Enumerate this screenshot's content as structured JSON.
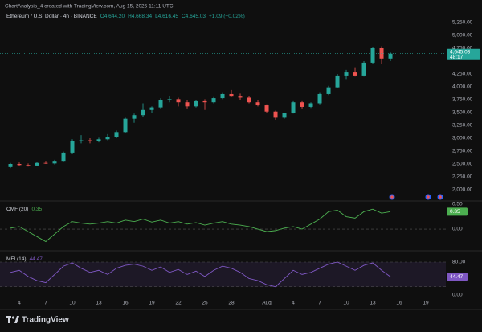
{
  "header": {
    "text": "ChartAnalysis_4 created with TradingView.com, Aug 15, 2025 11:11 UTC"
  },
  "footer": {
    "brand": "TradingView"
  },
  "chart_data": [
    {
      "type": "candlestick",
      "legend": {
        "symbol": "Ethereum / U.S. Dollar · 4h · BINANCE",
        "ohlc": [
          "O4,644.20",
          "H4,668.34",
          "L4,616.45",
          "C4,645.03"
        ],
        "change": "+1.09 (+0.02%)"
      },
      "last_label": "4,645.03",
      "countdown": "48:17",
      "up_color": "#26a69a",
      "down_color": "#ef5350",
      "xlim": [
        0.818,
        51.27
      ],
      "ylim": [
        1812.5,
        5312.5
      ],
      "grid": false,
      "yticks": [
        {
          "value": 5250,
          "label": "5,250.00"
        },
        {
          "value": 5000,
          "label": "5,000.00"
        },
        {
          "value": 4750,
          "label": "4,750.00"
        },
        {
          "value": 4250,
          "label": "4,250.00"
        },
        {
          "value": 4000,
          "label": "4,000.00"
        },
        {
          "value": 3750,
          "label": "3,750.00"
        },
        {
          "value": 3500,
          "label": "3,500.00"
        },
        {
          "value": 3250,
          "label": "3,250.00"
        },
        {
          "value": 3000,
          "label": "3,000.00"
        },
        {
          "value": 2750,
          "label": "2,750.00"
        },
        {
          "value": 2500,
          "label": "2,500.00"
        },
        {
          "value": 2250,
          "label": "2,250.00"
        },
        {
          "value": 2000,
          "label": "2,000.00"
        }
      ],
      "x": [
        2,
        3,
        4,
        5,
        6,
        7,
        8,
        9,
        10,
        11,
        12,
        13,
        14,
        15,
        16,
        17,
        18,
        19,
        20,
        21,
        22,
        23,
        24,
        25,
        26,
        27,
        28,
        29,
        30,
        31,
        32,
        33,
        34,
        35,
        36,
        37,
        38,
        39,
        40,
        41,
        42,
        43,
        44,
        45
      ],
      "open": [
        2440,
        2500,
        2480,
        2470,
        2520,
        2510,
        2560,
        2720,
        2950,
        2960,
        2940,
        2980,
        3020,
        3120,
        3380,
        3450,
        3550,
        3600,
        3750,
        3760,
        3700,
        3620,
        3720,
        3700,
        3780,
        3860,
        3810,
        3790,
        3700,
        3640,
        3520,
        3400,
        3490,
        3700,
        3610,
        3680,
        3860,
        3990,
        4220,
        4280,
        4220,
        4470,
        4750,
        4550
      ],
      "high": [
        2520,
        2530,
        2510,
        2540,
        2560,
        2580,
        2740,
        2980,
        3060,
        3000,
        3010,
        3080,
        3150,
        3400,
        3480,
        3680,
        3620,
        3780,
        3820,
        3790,
        3750,
        3750,
        3760,
        3800,
        3880,
        3940,
        3870,
        3820,
        3740,
        3660,
        3540,
        3500,
        3720,
        3720,
        3700,
        3880,
        4020,
        4250,
        4330,
        4380,
        4500,
        4780,
        4790,
        4670
      ],
      "low": [
        2420,
        2460,
        2450,
        2460,
        2500,
        2490,
        2550,
        2700,
        2900,
        2900,
        2920,
        2960,
        3000,
        3100,
        3300,
        3420,
        3500,
        3580,
        3700,
        3620,
        3580,
        3600,
        3550,
        3680,
        3760,
        3800,
        3740,
        3680,
        3620,
        3500,
        3360,
        3380,
        3480,
        3580,
        3590,
        3660,
        3840,
        3980,
        4150,
        4200,
        4200,
        4450,
        4450,
        4500
      ],
      "close": [
        2500,
        2480,
        2470,
        2520,
        2510,
        2560,
        2720,
        2950,
        2960,
        2940,
        2980,
        3020,
        3120,
        3380,
        3450,
        3550,
        3600,
        3750,
        3760,
        3700,
        3620,
        3720,
        3700,
        3780,
        3860,
        3810,
        3790,
        3700,
        3640,
        3520,
        3400,
        3490,
        3700,
        3610,
        3680,
        3860,
        3990,
        4220,
        4280,
        4220,
        4470,
        4750,
        4550,
        4645.03
      ]
    },
    {
      "type": "line",
      "title": "CMF (20)",
      "last_label": "0.35",
      "color": "#4caf50",
      "xlim": [
        0.818,
        51.27
      ],
      "ylim": [
        -0.403,
        0.565
      ],
      "hlines": [
        0
      ],
      "yticks": [
        {
          "value": 0.5,
          "label": "0.50"
        },
        {
          "value": 0,
          "label": "0.00"
        }
      ],
      "x": [
        2,
        3,
        4,
        5,
        6,
        7,
        8,
        9,
        10,
        11,
        12,
        13,
        14,
        15,
        16,
        17,
        18,
        19,
        20,
        21,
        22,
        23,
        24,
        25,
        26,
        27,
        28,
        29,
        30,
        31,
        32,
        33,
        34,
        35,
        36,
        37,
        38,
        39,
        40,
        41,
        42,
        43,
        44,
        45
      ],
      "values": [
        0.02,
        0.05,
        -0.05,
        -0.15,
        -0.25,
        -0.1,
        0.05,
        0.15,
        0.12,
        0.1,
        0.12,
        0.15,
        0.12,
        0.18,
        0.15,
        0.2,
        0.14,
        0.18,
        0.12,
        0.15,
        0.1,
        0.13,
        0.08,
        0.12,
        0.15,
        0.1,
        0.08,
        0.05,
        0.0,
        -0.05,
        -0.03,
        0.02,
        0.05,
        0.0,
        0.1,
        0.2,
        0.35,
        0.38,
        0.25,
        0.22,
        0.35,
        0.4,
        0.32,
        0.35
      ]
    },
    {
      "type": "line",
      "title": "MFI (14)",
      "last_label": "44.47",
      "color": "#7e57c2",
      "xlim": [
        0.818,
        51.27
      ],
      "ylim": [
        -5.85,
        107.3
      ],
      "band": [
        20,
        80
      ],
      "yticks": [
        {
          "value": 80,
          "label": "80.00"
        },
        {
          "value": 0,
          "label": "0.00"
        }
      ],
      "x": [
        2,
        3,
        4,
        5,
        6,
        7,
        8,
        9,
        10,
        11,
        12,
        13,
        14,
        15,
        16,
        17,
        18,
        19,
        20,
        21,
        22,
        23,
        24,
        25,
        26,
        27,
        28,
        29,
        30,
        31,
        32,
        33,
        34,
        35,
        36,
        37,
        38,
        39,
        40,
        41,
        42,
        43,
        44,
        45
      ],
      "values": [
        55,
        60,
        45,
        35,
        30,
        50,
        70,
        78,
        65,
        55,
        60,
        50,
        65,
        72,
        75,
        70,
        60,
        68,
        55,
        62,
        50,
        58,
        45,
        60,
        70,
        65,
        55,
        40,
        35,
        25,
        20,
        40,
        60,
        50,
        55,
        65,
        75,
        80,
        70,
        60,
        72,
        78,
        60,
        44.47
      ],
      "xticks": [
        {
          "value": 3,
          "label": "4"
        },
        {
          "value": 6,
          "label": "7"
        },
        {
          "value": 9,
          "label": "10"
        },
        {
          "value": 12,
          "label": "13"
        },
        {
          "value": 15,
          "label": "16"
        },
        {
          "value": 18,
          "label": "19"
        },
        {
          "value": 21,
          "label": "22"
        },
        {
          "value": 24,
          "label": "25"
        },
        {
          "value": 27,
          "label": "28"
        },
        {
          "value": 31,
          "label": "Aug"
        },
        {
          "value": 34,
          "label": "4"
        },
        {
          "value": 37,
          "label": "7"
        },
        {
          "value": 40,
          "label": "10"
        },
        {
          "value": 43,
          "label": "13"
        },
        {
          "value": 46,
          "label": "16"
        },
        {
          "value": 49,
          "label": "19"
        }
      ]
    }
  ]
}
